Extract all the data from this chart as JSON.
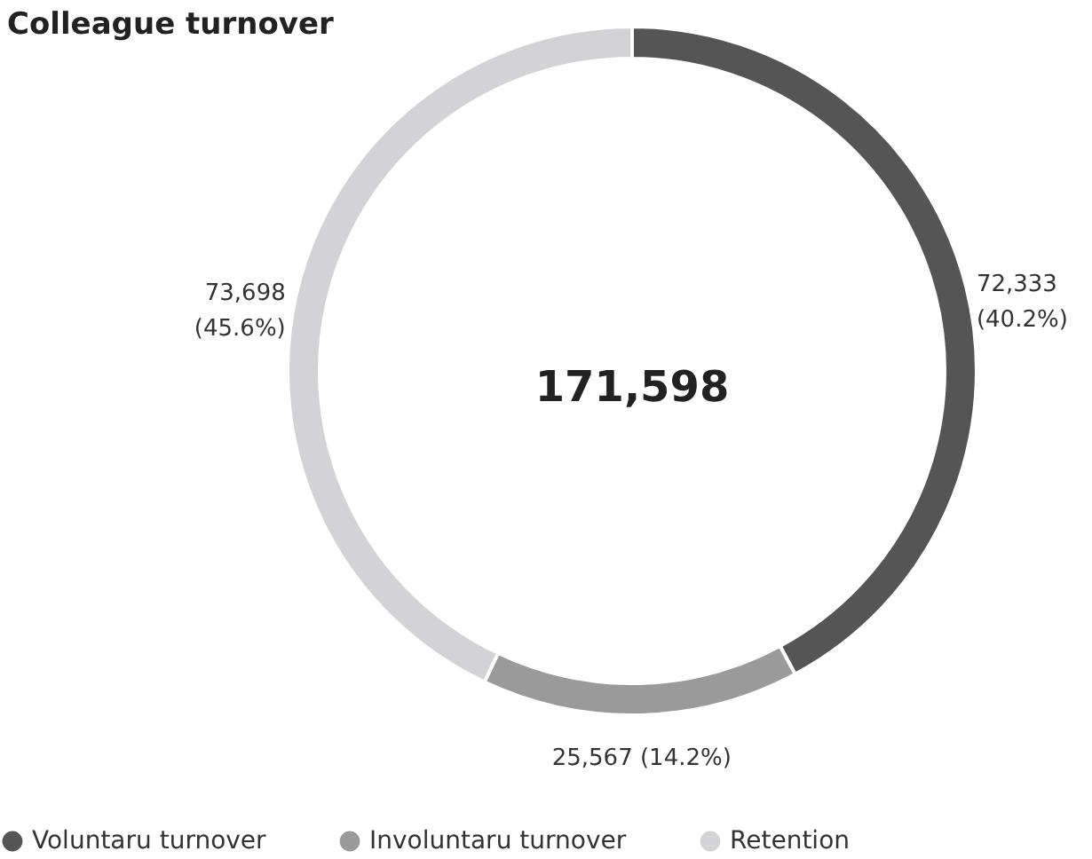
{
  "chart_data": {
    "type": "donut",
    "title": "Colleague turnover",
    "categories": [
      "Voluntaru turnover",
      "Involuntaru turnover",
      "Retention"
    ],
    "values": [
      72333,
      25567,
      73698
    ],
    "colors": [
      "#555556",
      "#9a9a9b",
      "#d3d3d5"
    ],
    "value_labels": [
      "72,333 (40.2%)",
      "25,567 (14.2%)",
      "73,698 (45.6%)"
    ],
    "annotations": [
      "171,598"
    ],
    "legend": "bottom"
  }
}
